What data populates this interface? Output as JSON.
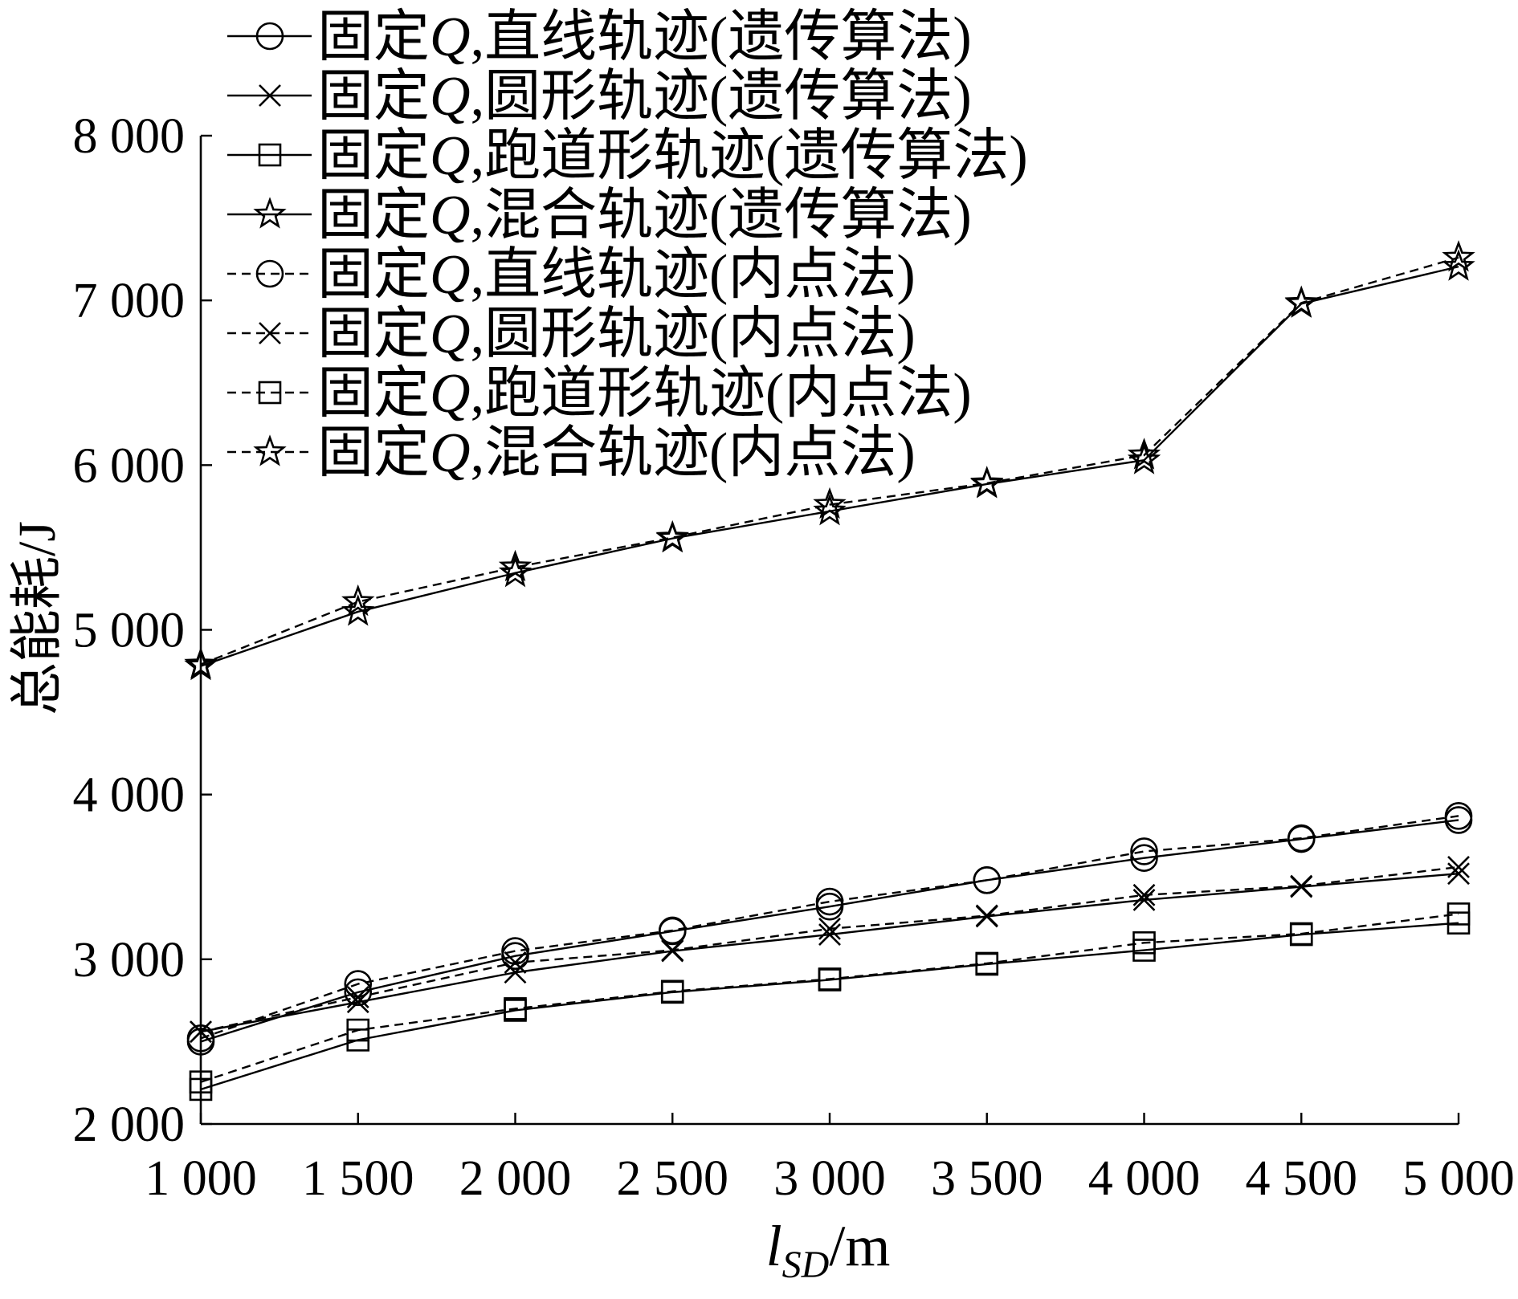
{
  "chart_data": {
    "type": "line",
    "ylabel": "总能耗/J",
    "xlabel": {
      "symbol": "l",
      "subscript": "SD",
      "unit": "/m"
    },
    "xlim": [
      1000,
      5000
    ],
    "ylim": [
      2000,
      8000
    ],
    "xticks": [
      1000,
      1500,
      2000,
      2500,
      3000,
      3500,
      4000,
      4500,
      5000
    ],
    "xtick_labels": [
      "1 000",
      "1 500",
      "2 000",
      "2 500",
      "3 000",
      "3 500",
      "4 000",
      "4 500",
      "5 000"
    ],
    "yticks": [
      2000,
      3000,
      4000,
      5000,
      6000,
      7000,
      8000
    ],
    "ytick_labels": [
      "2 000",
      "3 000",
      "4 000",
      "5 000",
      "6 000",
      "7 000",
      "8 000"
    ],
    "grid": false,
    "legend_position": "top-left",
    "colors": {
      "line": "#000000",
      "background": "#ffffff"
    },
    "x": [
      1000,
      1500,
      2000,
      2500,
      3000,
      3500,
      4000,
      4500,
      5000
    ],
    "series": [
      {
        "name": "固定Q,直线轨迹(遗传算法)",
        "line_style": "solid",
        "marker": "circle",
        "values": [
          2500,
          2800,
          3020,
          3170,
          3320,
          3480,
          3615,
          3730,
          3845
        ]
      },
      {
        "name": "固定Q,圆形轨迹(遗传算法)",
        "line_style": "solid",
        "marker": "x",
        "values": [
          2560,
          2740,
          2920,
          3050,
          3150,
          3260,
          3360,
          3440,
          3520
        ]
      },
      {
        "name": "固定Q,跑道形轨迹(遗传算法)",
        "line_style": "solid",
        "marker": "square",
        "values": [
          2210,
          2510,
          2690,
          2800,
          2875,
          2970,
          3055,
          3150,
          3220
        ]
      },
      {
        "name": "固定Q,混合轨迹(遗传算法)",
        "line_style": "solid",
        "marker": "star",
        "values": [
          4780,
          5110,
          5345,
          5555,
          5720,
          5885,
          6030,
          6980,
          7205
        ]
      },
      {
        "name": "固定Q,直线轨迹(内点法)",
        "line_style": "dashed",
        "marker": "circle",
        "values": [
          2520,
          2850,
          3050,
          3175,
          3350,
          3480,
          3655,
          3735,
          3870
        ]
      },
      {
        "name": "固定Q,圆形轨迹(内点法)",
        "line_style": "dashed",
        "marker": "x",
        "values": [
          2560,
          2770,
          2980,
          3055,
          3185,
          3265,
          3390,
          3445,
          3560
        ]
      },
      {
        "name": "固定Q,跑道形轨迹(内点法)",
        "line_style": "dashed",
        "marker": "square",
        "values": [
          2255,
          2570,
          2700,
          2805,
          2880,
          2975,
          3100,
          3155,
          3275
        ]
      },
      {
        "name": "固定Q,混合轨迹(内点法)",
        "line_style": "dashed",
        "marker": "star",
        "values": [
          4790,
          5170,
          5380,
          5560,
          5760,
          5890,
          6060,
          6985,
          7260
        ]
      }
    ]
  }
}
